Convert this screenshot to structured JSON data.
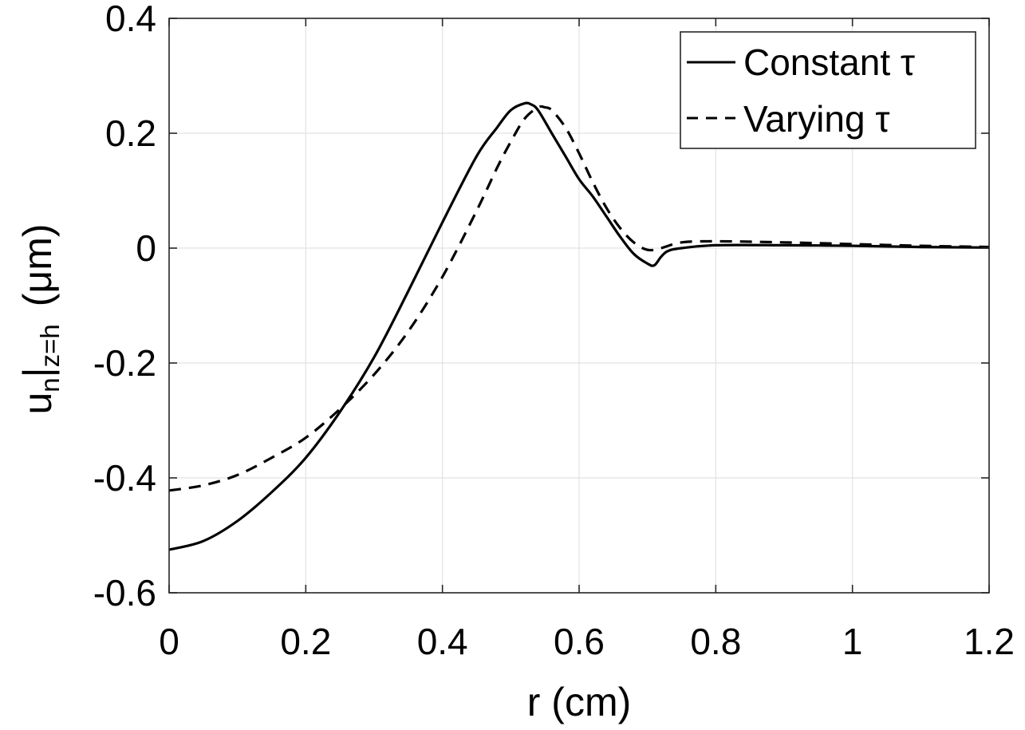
{
  "chart_data": {
    "type": "line",
    "title": "",
    "xlabel": "r (cm)",
    "ylabel": {
      "main": "u",
      "sub_n": "n",
      "bar": "|",
      "sub_z": "z=h",
      "units": "(μm)"
    },
    "xlim": [
      0,
      1.2
    ],
    "ylim": [
      -0.6,
      0.4
    ],
    "xticks": [
      0,
      0.2,
      0.4,
      0.6,
      0.8,
      1,
      1.2
    ],
    "xtick_labels": [
      "0",
      "0.2",
      "0.4",
      "0.6",
      "0.8",
      "1",
      "1.2"
    ],
    "yticks": [
      -0.6,
      -0.4,
      -0.2,
      0,
      0.2,
      0.4
    ],
    "ytick_labels": [
      "-0.6",
      "-0.4",
      "-0.2",
      "0",
      "0.2",
      "0.4"
    ],
    "grid": true,
    "legend_position": "top-right",
    "series": [
      {
        "name": "Constant τ",
        "legend_label": "Constant  τ",
        "style": "solid",
        "color": "#000000",
        "x": [
          0,
          0.05,
          0.1,
          0.15,
          0.2,
          0.25,
          0.3,
          0.35,
          0.4,
          0.45,
          0.48,
          0.5,
          0.52,
          0.53,
          0.54,
          0.56,
          0.58,
          0.6,
          0.62,
          0.64,
          0.66,
          0.68,
          0.7,
          0.71,
          0.72,
          0.73,
          0.75,
          0.8,
          0.9,
          1.0,
          1.1,
          1.2
        ],
        "y": [
          -0.525,
          -0.51,
          -0.475,
          -0.425,
          -0.365,
          -0.285,
          -0.19,
          -0.075,
          0.045,
          0.16,
          0.21,
          0.24,
          0.252,
          0.25,
          0.24,
          0.2,
          0.16,
          0.12,
          0.09,
          0.055,
          0.02,
          -0.01,
          -0.027,
          -0.03,
          -0.015,
          -0.005,
          0.0,
          0.005,
          0.005,
          0.004,
          0.002,
          0.001
        ]
      },
      {
        "name": "Varying τ",
        "legend_label": "Varying  τ",
        "style": "dashed",
        "color": "#000000",
        "x": [
          0,
          0.05,
          0.1,
          0.15,
          0.2,
          0.25,
          0.3,
          0.35,
          0.4,
          0.45,
          0.48,
          0.5,
          0.52,
          0.54,
          0.55,
          0.56,
          0.58,
          0.6,
          0.62,
          0.64,
          0.66,
          0.68,
          0.7,
          0.72,
          0.75,
          0.8,
          0.9,
          1.0,
          1.1,
          1.2
        ],
        "y": [
          -0.422,
          -0.413,
          -0.395,
          -0.365,
          -0.33,
          -0.28,
          -0.22,
          -0.145,
          -0.05,
          0.065,
          0.14,
          0.185,
          0.225,
          0.245,
          0.245,
          0.24,
          0.21,
          0.165,
          0.115,
          0.07,
          0.035,
          0.01,
          -0.003,
          0.0,
          0.01,
          0.012,
          0.01,
          0.007,
          0.004,
          0.002
        ]
      }
    ]
  }
}
